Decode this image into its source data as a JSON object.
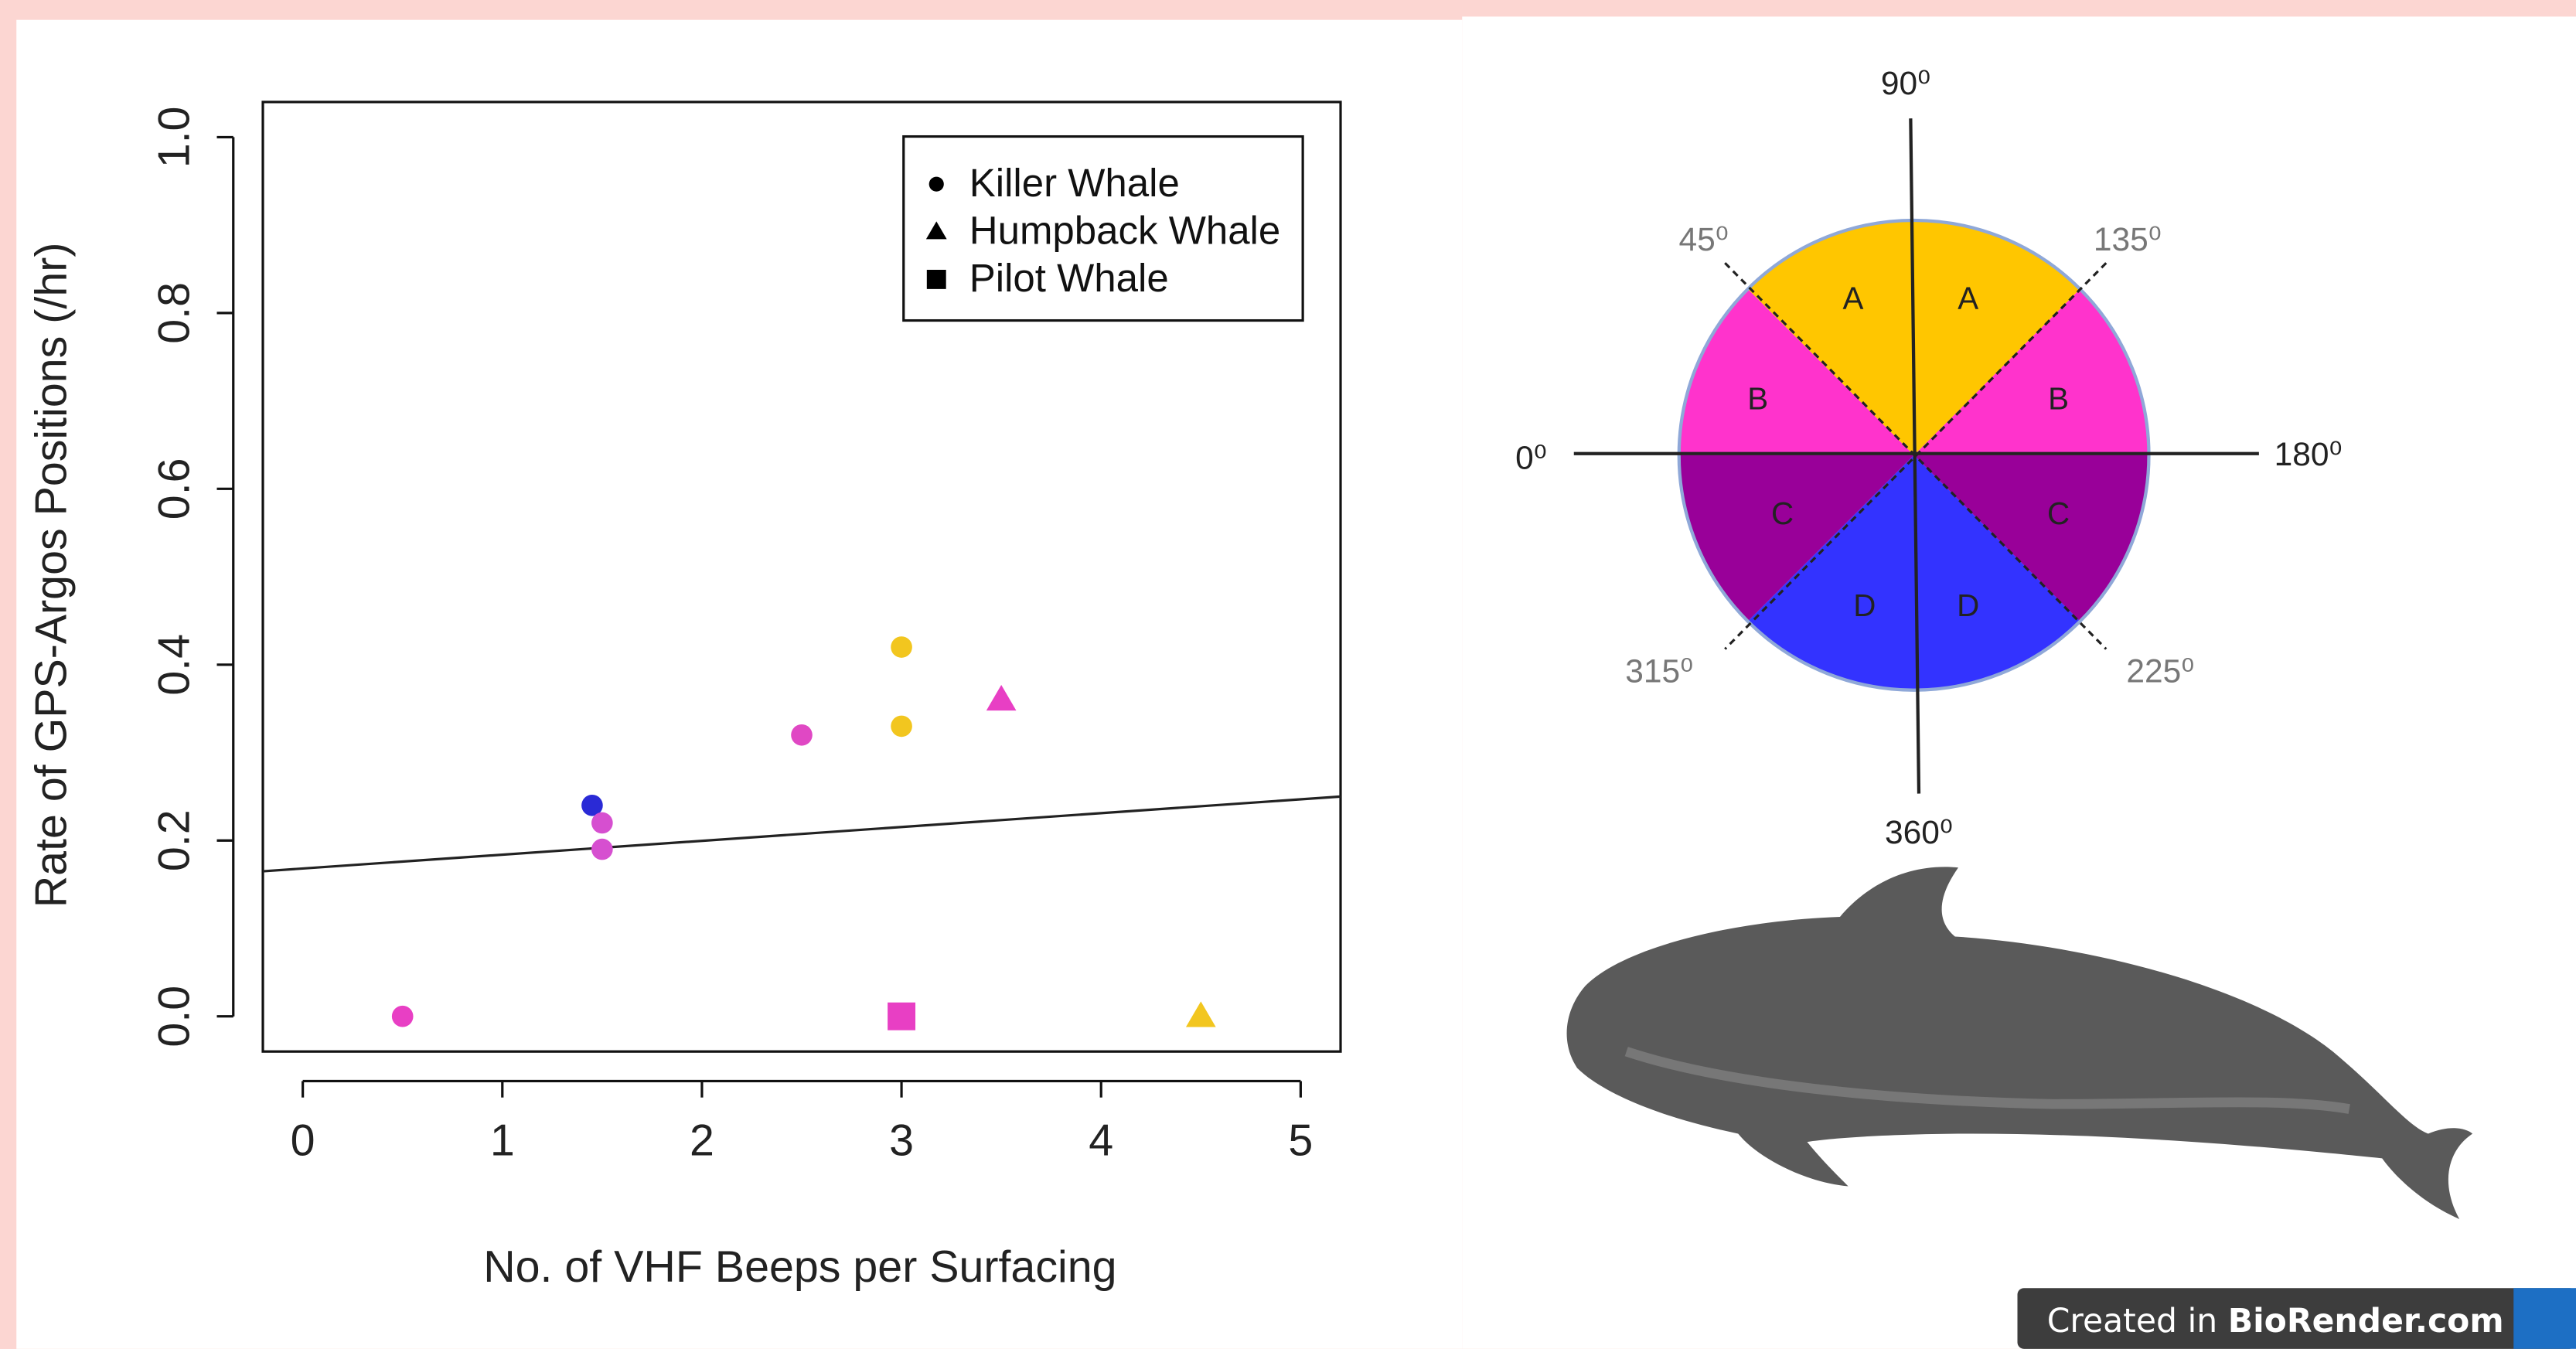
{
  "chart_data": {
    "type": "scatter",
    "xlabel": "No. of VHF Beeps per Surfacing",
    "ylabel": "Rate of GPS-Argos Positions (/hr)",
    "xlim": [
      -0.2,
      5.2
    ],
    "ylim": [
      -0.04,
      1.04
    ],
    "xticks": [
      0,
      1,
      2,
      3,
      4,
      5
    ],
    "yticks": [
      {
        "value": 0,
        "label": "0.0"
      },
      0.2,
      0.4,
      0.6,
      0.8,
      {
        "value": 1,
        "label": "1.0"
      }
    ],
    "legend_position": "upper right",
    "series": [
      {
        "name": "Killer Whale",
        "marker": "circle",
        "color": "#000000",
        "x": [
          0.5,
          1.45,
          1.5,
          1.5,
          2.5,
          3,
          3
        ],
        "values": [
          0,
          0.24,
          0.22,
          0.19,
          0.32,
          0.42,
          0.33
        ],
        "point_colors": [
          "#e83fc4",
          "#2a2ad6",
          "#d64fd0",
          "#d64fd0",
          "#e048c4",
          "#f2c61f",
          "#f2c61f"
        ]
      },
      {
        "name": "Humpback Whale",
        "marker": "triangle",
        "color": "#000000",
        "x": [
          3.5,
          4.5
        ],
        "values": [
          0.36,
          0
        ],
        "point_colors": [
          "#e83fc4",
          "#f2c61f"
        ]
      },
      {
        "name": "Pilot Whale",
        "marker": "square",
        "color": "#000000",
        "x": [
          3
        ],
        "values": [
          0
        ],
        "point_colors": [
          "#e83fc4"
        ]
      }
    ],
    "fit_line": {
      "color": "#222222",
      "x": [
        -0.2,
        5.2
      ],
      "y": [
        0.165,
        0.25
      ]
    }
  },
  "diagram": {
    "angle_labels": [
      "90⁰",
      "45⁰",
      "135⁰",
      "0⁰",
      "180⁰",
      "315⁰",
      "225⁰",
      "360⁰"
    ],
    "sector_labels": [
      "A",
      "A",
      "B",
      "B",
      "C",
      "C",
      "D",
      "D"
    ]
  },
  "badge": {
    "prefix": "Created in ",
    "brand": "BioRender.com"
  }
}
